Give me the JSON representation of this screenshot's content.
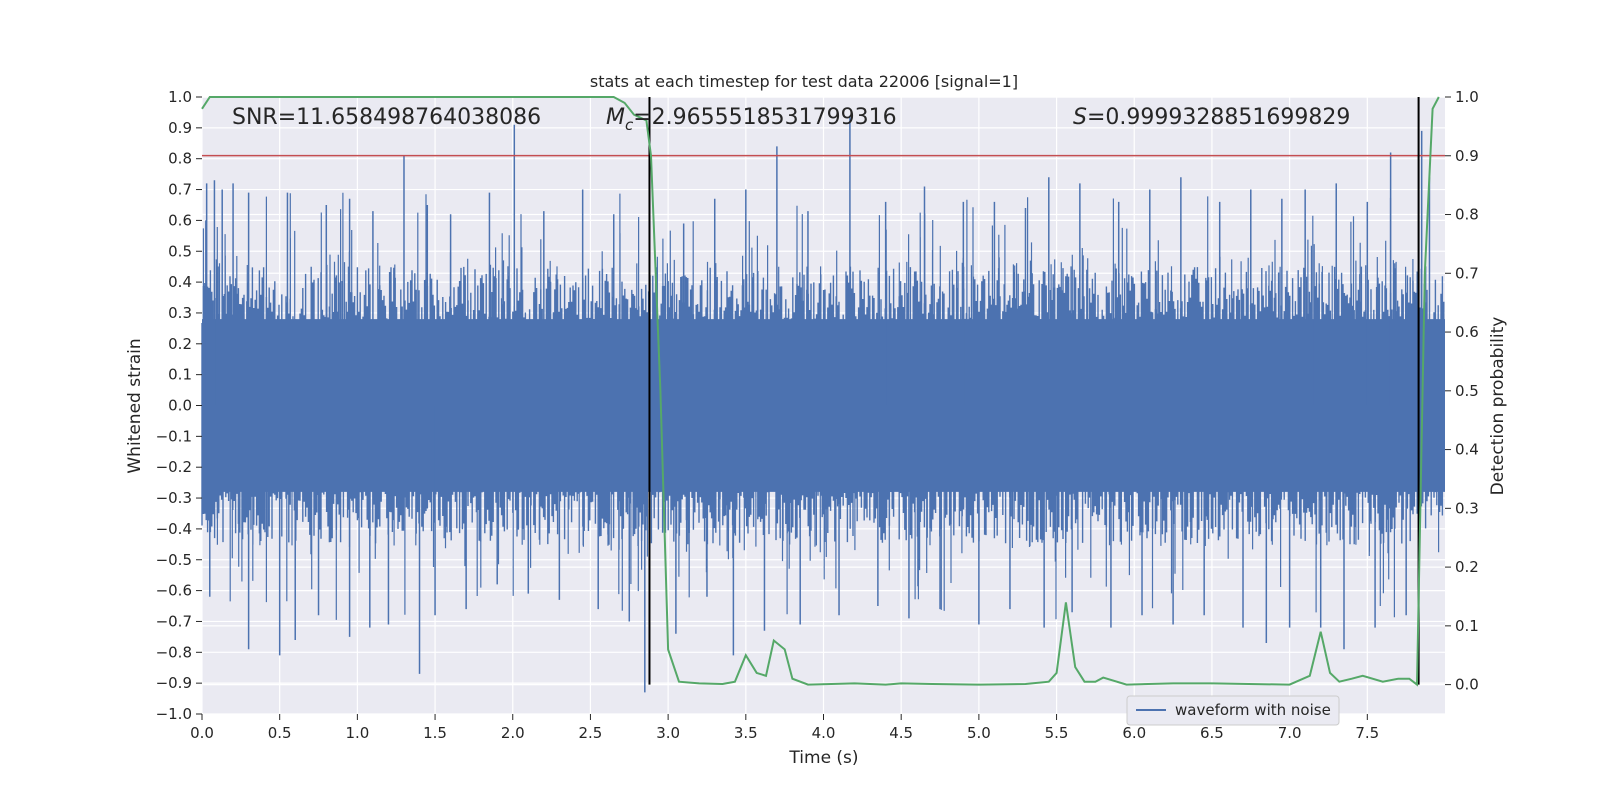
{
  "chart_data": {
    "type": "line",
    "title": "stats at each timestep for test data 22006 [signal=1]",
    "xlabel": "Time (s)",
    "ylabel": "Whitened strain",
    "y2label": "Detection probability",
    "xlim": [
      0.0,
      8.0
    ],
    "ylim": [
      -1.0,
      1.0
    ],
    "y2lim": [
      -0.05,
      1.0
    ],
    "xticks": [
      0.0,
      0.5,
      1.0,
      1.5,
      2.0,
      2.5,
      3.0,
      3.5,
      4.0,
      4.5,
      5.0,
      5.5,
      6.0,
      6.5,
      7.0,
      7.5
    ],
    "yticks": [
      -1.0,
      -0.9,
      -0.8,
      -0.7,
      -0.6,
      -0.5,
      -0.4,
      -0.3,
      -0.2,
      -0.1,
      0.0,
      0.1,
      0.2,
      0.3,
      0.4,
      0.5,
      0.6,
      0.7,
      0.8,
      0.9,
      1.0
    ],
    "y2ticks": [
      0.0,
      0.1,
      0.2,
      0.3,
      0.4,
      0.5,
      0.6,
      0.7,
      0.8,
      0.9,
      1.0
    ],
    "grid": true,
    "legend": {
      "placement": "bottom-right",
      "entries": [
        "waveform with noise"
      ]
    },
    "annotations": {
      "snr": "SNR=11.658498764038086",
      "mc_symbol": "M",
      "mc_sub": "c",
      "mc_value": "=2.9655518531799316",
      "s_symbol": "S",
      "s_value": "=0.9999328851699829"
    },
    "series": [
      {
        "name": "waveform with noise",
        "color": "#4c72b0",
        "axis": "left",
        "envelope": {
          "x_start": 0.0,
          "x_end": 8.0,
          "typical_upper": 0.45,
          "typical_lower": -0.45
        },
        "peaks": [
          {
            "x": 0.03,
            "y": 0.72
          },
          {
            "x": 0.08,
            "y": 0.73
          },
          {
            "x": 0.13,
            "y": 0.7
          },
          {
            "x": 0.2,
            "y": 0.72
          },
          {
            "x": 0.3,
            "y": 0.69
          },
          {
            "x": 0.55,
            "y": 0.69
          },
          {
            "x": 0.8,
            "y": 0.65
          },
          {
            "x": 0.95,
            "y": 0.67
          },
          {
            "x": 1.1,
            "y": 0.63
          },
          {
            "x": 1.3,
            "y": 0.81
          },
          {
            "x": 1.45,
            "y": 0.65
          },
          {
            "x": 1.6,
            "y": 0.62
          },
          {
            "x": 1.85,
            "y": 0.69
          },
          {
            "x": 2.01,
            "y": 0.91
          },
          {
            "x": 2.2,
            "y": 0.63
          },
          {
            "x": 2.45,
            "y": 0.7
          },
          {
            "x": 2.65,
            "y": 0.62
          },
          {
            "x": 3.1,
            "y": 0.59
          },
          {
            "x": 3.3,
            "y": 0.67
          },
          {
            "x": 3.5,
            "y": 0.7
          },
          {
            "x": 3.7,
            "y": 0.84
          },
          {
            "x": 3.9,
            "y": 0.63
          },
          {
            "x": 4.17,
            "y": 0.94
          },
          {
            "x": 4.4,
            "y": 0.66
          },
          {
            "x": 4.65,
            "y": 0.71
          },
          {
            "x": 4.9,
            "y": 0.66
          },
          {
            "x": 5.1,
            "y": 0.66
          },
          {
            "x": 5.3,
            "y": 0.64
          },
          {
            "x": 5.45,
            "y": 0.74
          },
          {
            "x": 5.65,
            "y": 0.72
          },
          {
            "x": 5.9,
            "y": 0.66
          },
          {
            "x": 6.1,
            "y": 0.7
          },
          {
            "x": 6.3,
            "y": 0.74
          },
          {
            "x": 6.55,
            "y": 0.66
          },
          {
            "x": 6.75,
            "y": 0.7
          },
          {
            "x": 6.95,
            "y": 0.67
          },
          {
            "x": 7.1,
            "y": 0.7
          },
          {
            "x": 7.3,
            "y": 0.72
          },
          {
            "x": 7.5,
            "y": 0.66
          },
          {
            "x": 7.65,
            "y": 0.82
          },
          {
            "x": 7.85,
            "y": 0.89
          },
          {
            "x": 7.9,
            "y": 0.74
          }
        ],
        "troughs": [
          {
            "x": 0.05,
            "y": -0.62
          },
          {
            "x": 0.3,
            "y": -0.79
          },
          {
            "x": 0.5,
            "y": -0.81
          },
          {
            "x": 0.6,
            "y": -0.76
          },
          {
            "x": 0.75,
            "y": -0.68
          },
          {
            "x": 0.95,
            "y": -0.75
          },
          {
            "x": 1.08,
            "y": -0.72
          },
          {
            "x": 1.2,
            "y": -0.71
          },
          {
            "x": 1.4,
            "y": -0.87
          },
          {
            "x": 1.5,
            "y": -0.68
          },
          {
            "x": 1.7,
            "y": -0.66
          },
          {
            "x": 1.9,
            "y": -0.58
          },
          {
            "x": 2.1,
            "y": -0.61
          },
          {
            "x": 2.3,
            "y": -0.63
          },
          {
            "x": 2.55,
            "y": -0.66
          },
          {
            "x": 2.75,
            "y": -0.7
          },
          {
            "x": 2.85,
            "y": -0.93
          },
          {
            "x": 3.05,
            "y": -0.74
          },
          {
            "x": 3.25,
            "y": -0.62
          },
          {
            "x": 3.42,
            "y": -0.81
          },
          {
            "x": 3.62,
            "y": -0.73
          },
          {
            "x": 3.85,
            "y": -0.71
          },
          {
            "x": 4.1,
            "y": -0.68
          },
          {
            "x": 4.35,
            "y": -0.65
          },
          {
            "x": 4.55,
            "y": -0.69
          },
          {
            "x": 4.75,
            "y": -0.66
          },
          {
            "x": 5.0,
            "y": -0.71
          },
          {
            "x": 5.2,
            "y": -0.66
          },
          {
            "x": 5.42,
            "y": -0.72
          },
          {
            "x": 5.6,
            "y": -0.67
          },
          {
            "x": 5.85,
            "y": -0.72
          },
          {
            "x": 6.05,
            "y": -0.68
          },
          {
            "x": 6.25,
            "y": -0.71
          },
          {
            "x": 6.45,
            "y": -0.68
          },
          {
            "x": 6.7,
            "y": -0.72
          },
          {
            "x": 6.85,
            "y": -0.77
          },
          {
            "x": 7.0,
            "y": -0.72
          },
          {
            "x": 7.2,
            "y": -0.72
          },
          {
            "x": 7.35,
            "y": -0.79
          },
          {
            "x": 7.55,
            "y": -0.72
          },
          {
            "x": 7.75,
            "y": -0.68
          }
        ]
      },
      {
        "name": "",
        "color": "#55a868",
        "axis": "right",
        "x": [
          0.0,
          0.05,
          0.1,
          2.65,
          2.72,
          2.78,
          2.86,
          2.89,
          2.95,
          3.0,
          3.07,
          3.2,
          3.35,
          3.43,
          3.5,
          3.57,
          3.63,
          3.68,
          3.75,
          3.8,
          3.9,
          4.2,
          4.4,
          4.5,
          4.7,
          5.0,
          5.3,
          5.45,
          5.5,
          5.56,
          5.62,
          5.68,
          5.75,
          5.8,
          5.95,
          6.25,
          6.5,
          7.0,
          7.13,
          7.2,
          7.26,
          7.32,
          7.4,
          7.47,
          7.6,
          7.7,
          7.77,
          7.82,
          7.87,
          7.92,
          7.96
        ],
        "values": [
          0.98,
          1.0,
          1.0,
          1.0,
          0.99,
          0.97,
          0.96,
          0.9,
          0.5,
          0.06,
          0.005,
          0.002,
          0.001,
          0.005,
          0.05,
          0.02,
          0.015,
          0.075,
          0.06,
          0.01,
          0.0,
          0.002,
          0.0,
          0.002,
          0.001,
          0.0,
          0.001,
          0.005,
          0.02,
          0.14,
          0.03,
          0.005,
          0.005,
          0.012,
          0.0,
          0.002,
          0.002,
          0.0,
          0.015,
          0.09,
          0.02,
          0.005,
          0.01,
          0.015,
          0.005,
          0.01,
          0.01,
          0.0,
          0.7,
          0.98,
          1.0
        ]
      }
    ],
    "reference_lines": [
      {
        "type": "horizontal",
        "axis": "left",
        "y": 0.81,
        "color": "#c44e52"
      },
      {
        "type": "vertical",
        "x": 2.88,
        "y_from": 0.0,
        "y_to": 1.0,
        "axis": "right",
        "color": "#000000"
      },
      {
        "type": "vertical",
        "x": 7.83,
        "y_from": 0.0,
        "y_to": 1.0,
        "axis": "right",
        "color": "#000000"
      }
    ]
  }
}
